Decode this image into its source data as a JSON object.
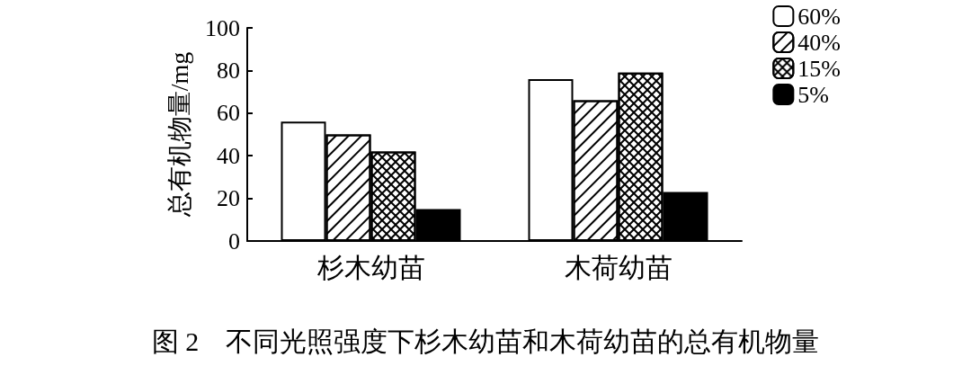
{
  "chart_data": {
    "type": "bar",
    "title": "图 2　不同光照强度下杉木幼苗和木荷幼苗的总有机物量",
    "ylabel": "总有机物量/mg",
    "categories": [
      "杉木幼苗",
      "木荷幼苗"
    ],
    "series": [
      {
        "name": "60%",
        "color": "#ffffff",
        "values": [
          56,
          76
        ]
      },
      {
        "name": "40%",
        "color": "#ffffff",
        "values": [
          50,
          66
        ]
      },
      {
        "name": "15%",
        "color": "#ffffff",
        "values": [
          42,
          79
        ]
      },
      {
        "name": "5%",
        "color": "#000000",
        "values": [
          15,
          23
        ]
      }
    ],
    "ylim": [
      0,
      100
    ],
    "yticks": [
      0,
      20,
      40,
      60,
      80,
      100
    ],
    "grid": false,
    "legend": "top right"
  }
}
